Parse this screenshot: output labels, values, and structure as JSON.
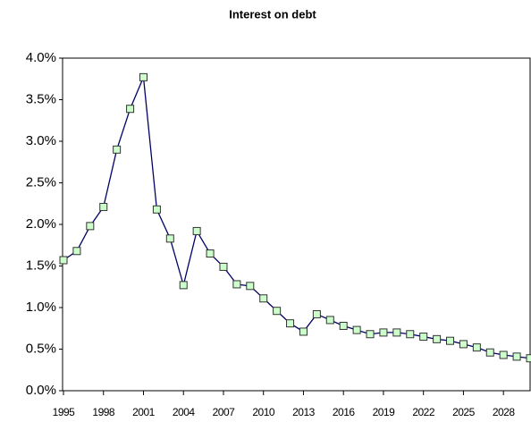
{
  "chart_data": {
    "type": "line",
    "title": "Interest on debt",
    "x": [
      1995,
      1996,
      1997,
      1998,
      1999,
      2000,
      2001,
      2002,
      2003,
      2004,
      2005,
      2006,
      2007,
      2008,
      2009,
      2010,
      2011,
      2012,
      2013,
      2014,
      2015,
      2016,
      2017,
      2018,
      2019,
      2020,
      2021,
      2022,
      2023,
      2024,
      2025,
      2026,
      2027,
      2028,
      2029,
      2030
    ],
    "values": [
      1.57,
      1.68,
      1.98,
      2.21,
      2.9,
      3.39,
      3.77,
      2.18,
      1.83,
      1.27,
      1.92,
      1.65,
      1.49,
      1.28,
      1.26,
      1.11,
      0.96,
      0.81,
      0.71,
      0.92,
      0.85,
      0.78,
      0.73,
      0.68,
      0.7,
      0.7,
      0.68,
      0.65,
      0.62,
      0.6,
      0.56,
      0.52,
      0.46,
      0.43,
      0.41,
      0.39
    ],
    "color": "#000066",
    "marker_color": "#ccffcc",
    "xlim": [
      1995,
      2030
    ],
    "xticks": [
      1995,
      1998,
      2001,
      2004,
      2007,
      2010,
      2013,
      2016,
      2019,
      2022,
      2025,
      2028
    ],
    "ylim": [
      0,
      4
    ],
    "yticks": [
      {
        "value": 0,
        "label": "0.0%"
      },
      {
        "value": 0.5,
        "label": "0.5%"
      },
      {
        "value": 1,
        "label": "1.0%"
      },
      {
        "value": 1.5,
        "label": "1.5%"
      },
      {
        "value": 2,
        "label": "2.0%"
      },
      {
        "value": 2.5,
        "label": "2.5%"
      },
      {
        "value": 3,
        "label": "3.0%"
      },
      {
        "value": 3.5,
        "label": "3.5%"
      },
      {
        "value": 4,
        "label": "4.0%"
      }
    ]
  }
}
